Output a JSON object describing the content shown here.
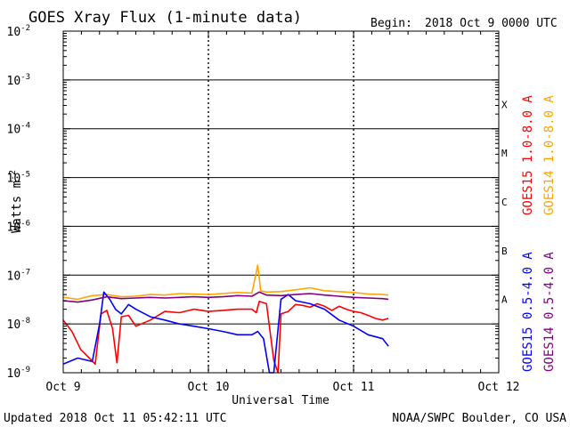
{
  "chart_data": {
    "type": "line",
    "title": "GOES Xray Flux (1-minute data)",
    "begin_label": "Begin:",
    "begin_value": "2018 Oct 9 0000 UTC",
    "ylabel_main": "Watts m",
    "ylabel_sup": "-2",
    "xlabel": "Universal Time",
    "y_scale": "log",
    "ylim": [
      1e-09,
      0.01
    ],
    "xlim": [
      0,
      3
    ],
    "grid": true,
    "x_ticks": [
      {
        "value": 0,
        "label": "Oct 9"
      },
      {
        "value": 1,
        "label": "Oct 10"
      },
      {
        "value": 2,
        "label": "Oct 11"
      },
      {
        "value": 3,
        "label": "Oct 12"
      }
    ],
    "y_ticks": [
      {
        "exp": -9,
        "base": "10",
        "sup": "-9"
      },
      {
        "exp": -8,
        "base": "10",
        "sup": "-8"
      },
      {
        "exp": -7,
        "base": "10",
        "sup": "-7"
      },
      {
        "exp": -6,
        "base": "10",
        "sup": "-6"
      },
      {
        "exp": -5,
        "base": "10",
        "sup": "-5"
      },
      {
        "exp": -4,
        "base": "10",
        "sup": "-4"
      },
      {
        "exp": -3,
        "base": "10",
        "sup": "-3"
      },
      {
        "exp": -2,
        "base": "10",
        "sup": "-2"
      }
    ],
    "flare_classes": [
      {
        "label": "A",
        "exp": -8
      },
      {
        "label": "B",
        "exp": -7
      },
      {
        "label": "C",
        "exp": -6
      },
      {
        "label": "M",
        "exp": -5
      },
      {
        "label": "X",
        "exp": -4
      }
    ],
    "series": [
      {
        "name": "GOES15 1.0-8.0 A",
        "color": "#ff0000",
        "legend_row": 0,
        "points": [
          [
            0,
            1.2e-08
          ],
          [
            0.06,
            7e-09
          ],
          [
            0.12,
            3e-09
          ],
          [
            0.18,
            2e-09
          ],
          [
            0.22,
            1.5e-09
          ],
          [
            0.26,
            1.6e-08
          ],
          [
            0.3,
            1.9e-08
          ],
          [
            0.34,
            8e-09
          ],
          [
            0.37,
            1.6e-09
          ],
          [
            0.4,
            1.4e-08
          ],
          [
            0.45,
            1.5e-08
          ],
          [
            0.5,
            9e-09
          ],
          [
            0.6,
            1.2e-08
          ],
          [
            0.7,
            1.8e-08
          ],
          [
            0.8,
            1.7e-08
          ],
          [
            0.9,
            2e-08
          ],
          [
            1.0,
            1.8e-08
          ],
          [
            1.1,
            1.9e-08
          ],
          [
            1.2,
            2e-08
          ],
          [
            1.3,
            2e-08
          ],
          [
            1.33,
            1.7e-08
          ],
          [
            1.35,
            2.9e-08
          ],
          [
            1.4,
            2.6e-08
          ],
          [
            1.45,
            1.8e-09
          ],
          [
            1.48,
            1e-09
          ],
          [
            1.5,
            1.6e-08
          ],
          [
            1.55,
            1.8e-08
          ],
          [
            1.6,
            2.5e-08
          ],
          [
            1.65,
            2.4e-08
          ],
          [
            1.7,
            2.2e-08
          ],
          [
            1.75,
            2.6e-08
          ],
          [
            1.8,
            2.3e-08
          ],
          [
            1.85,
            1.9e-08
          ],
          [
            1.9,
            2.3e-08
          ],
          [
            1.95,
            2e-08
          ],
          [
            2.0,
            1.8e-08
          ],
          [
            2.05,
            1.7e-08
          ],
          [
            2.1,
            1.5e-08
          ],
          [
            2.15,
            1.3e-08
          ],
          [
            2.2,
            1.2e-08
          ],
          [
            2.24,
            1.3e-08
          ]
        ]
      },
      {
        "name": "GOES14 1.0-8.0 A",
        "color": "#ffa500",
        "legend_row": 0,
        "points": [
          [
            0,
            3.5e-08
          ],
          [
            0.1,
            3.2e-08
          ],
          [
            0.2,
            3.8e-08
          ],
          [
            0.3,
            4e-08
          ],
          [
            0.4,
            3.6e-08
          ],
          [
            0.5,
            3.7e-08
          ],
          [
            0.6,
            4e-08
          ],
          [
            0.7,
            3.9e-08
          ],
          [
            0.8,
            4.2e-08
          ],
          [
            0.9,
            4.1e-08
          ],
          [
            1.0,
            4e-08
          ],
          [
            1.1,
            4.2e-08
          ],
          [
            1.2,
            4.4e-08
          ],
          [
            1.3,
            4.3e-08
          ],
          [
            1.34,
            1.6e-07
          ],
          [
            1.36,
            4.8e-08
          ],
          [
            1.4,
            4.5e-08
          ],
          [
            1.5,
            4.6e-08
          ],
          [
            1.6,
            5e-08
          ],
          [
            1.7,
            5.5e-08
          ],
          [
            1.8,
            4.8e-08
          ],
          [
            1.9,
            4.6e-08
          ],
          [
            2.0,
            4.4e-08
          ],
          [
            2.1,
            4.1e-08
          ],
          [
            2.2,
            4e-08
          ],
          [
            2.24,
            3.9e-08
          ]
        ]
      },
      {
        "name": "GOES15 0.5-4.0 A",
        "color": "#0000ff",
        "legend_row": 1,
        "points": [
          [
            0,
            1.5e-09
          ],
          [
            0.1,
            2e-09
          ],
          [
            0.2,
            1.7e-09
          ],
          [
            0.25,
            1e-08
          ],
          [
            0.28,
            4.5e-08
          ],
          [
            0.32,
            3.2e-08
          ],
          [
            0.36,
            2e-08
          ],
          [
            0.4,
            1.6e-08
          ],
          [
            0.45,
            2.5e-08
          ],
          [
            0.5,
            2e-08
          ],
          [
            0.6,
            1.4e-08
          ],
          [
            0.7,
            1.2e-08
          ],
          [
            0.8,
            1e-08
          ],
          [
            0.9,
            9e-09
          ],
          [
            1.0,
            8e-09
          ],
          [
            1.1,
            7e-09
          ],
          [
            1.2,
            6e-09
          ],
          [
            1.3,
            6e-09
          ],
          [
            1.34,
            7e-09
          ],
          [
            1.38,
            5e-09
          ],
          [
            1.42,
            1e-09
          ],
          [
            1.45,
            1e-09
          ],
          [
            1.5,
            3.2e-08
          ],
          [
            1.55,
            4e-08
          ],
          [
            1.6,
            3e-08
          ],
          [
            1.7,
            2.6e-08
          ],
          [
            1.8,
            2e-08
          ],
          [
            1.9,
            1.2e-08
          ],
          [
            2.0,
            9e-09
          ],
          [
            2.1,
            6e-09
          ],
          [
            2.2,
            5e-09
          ],
          [
            2.24,
            3.5e-09
          ]
        ]
      },
      {
        "name": "GOES14 0.5-4.0 A",
        "color": "#800080",
        "legend_row": 1,
        "points": [
          [
            0,
            3e-08
          ],
          [
            0.1,
            2.8e-08
          ],
          [
            0.2,
            3.1e-08
          ],
          [
            0.3,
            3.6e-08
          ],
          [
            0.4,
            3.3e-08
          ],
          [
            0.5,
            3.4e-08
          ],
          [
            0.6,
            3.5e-08
          ],
          [
            0.7,
            3.4e-08
          ],
          [
            0.8,
            3.5e-08
          ],
          [
            0.9,
            3.6e-08
          ],
          [
            1.0,
            3.5e-08
          ],
          [
            1.1,
            3.6e-08
          ],
          [
            1.2,
            3.8e-08
          ],
          [
            1.3,
            3.7e-08
          ],
          [
            1.35,
            4.5e-08
          ],
          [
            1.4,
            3.9e-08
          ],
          [
            1.5,
            3.8e-08
          ],
          [
            1.6,
            4e-08
          ],
          [
            1.7,
            4.2e-08
          ],
          [
            1.8,
            3.9e-08
          ],
          [
            1.9,
            3.7e-08
          ],
          [
            2.0,
            3.5e-08
          ],
          [
            2.1,
            3.4e-08
          ],
          [
            2.2,
            3.3e-08
          ],
          [
            2.24,
            3.2e-08
          ]
        ]
      }
    ]
  },
  "footer": {
    "updated": "Updated 2018 Oct 11 05:42:11 UTC",
    "credit": "NOAA/SWPC Boulder, CO USA"
  }
}
